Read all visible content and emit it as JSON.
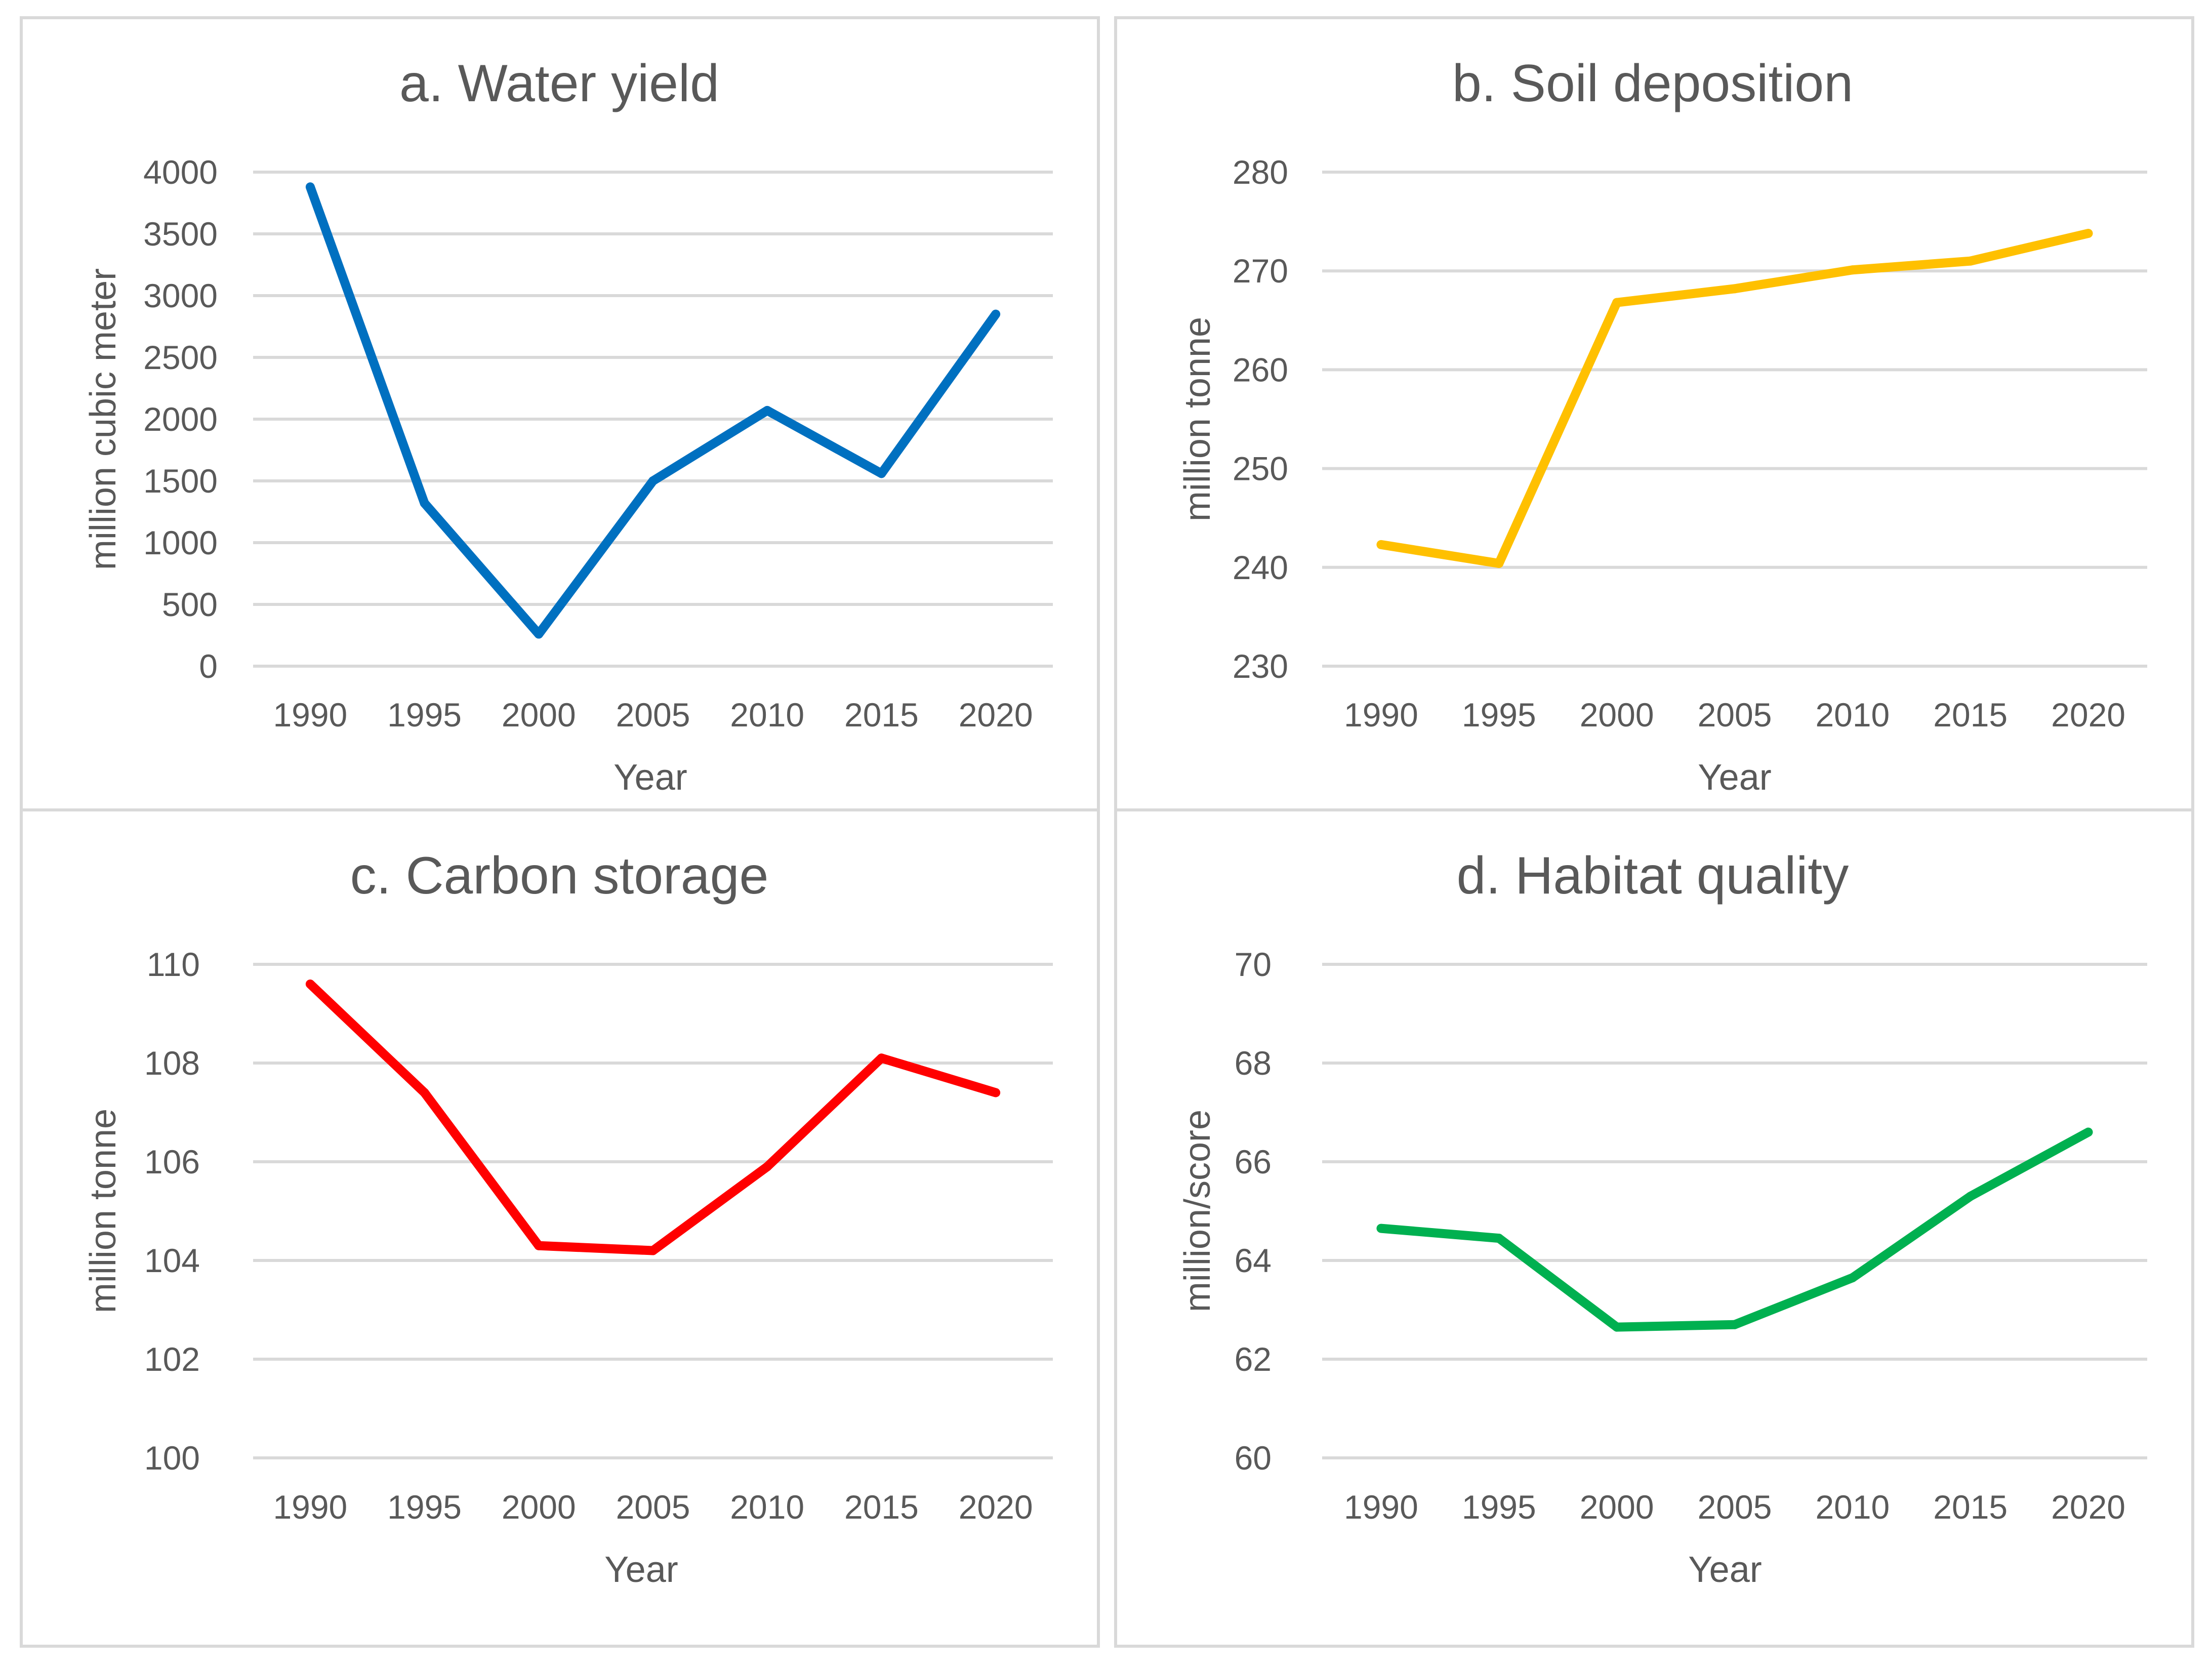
{
  "chart_data": [
    {
      "type": "line",
      "title": "a. Water yield",
      "xlabel": "Year",
      "ylabel": "million cubic meter",
      "categories": [
        "1990",
        "1995",
        "2000",
        "2005",
        "2010",
        "2015",
        "2020"
      ],
      "yticks": [
        "0",
        "500",
        "1000",
        "1500",
        "2000",
        "2500",
        "3000",
        "3500",
        "4000"
      ],
      "ylim": [
        0,
        4000
      ],
      "grid": true,
      "legend": "none",
      "series": [
        {
          "name": "Water yield",
          "color": "#0070c0",
          "values": [
            3880,
            1320,
            260,
            1500,
            2070,
            1560,
            2850
          ]
        }
      ]
    },
    {
      "type": "line",
      "title": "b. Soil deposition",
      "xlabel": "Year",
      "ylabel": "million tonne",
      "categories": [
        "1990",
        "1995",
        "2000",
        "2005",
        "2010",
        "2015",
        "2020"
      ],
      "yticks": [
        "230",
        "240",
        "250",
        "260",
        "270",
        "280"
      ],
      "ylim": [
        230,
        280
      ],
      "grid": true,
      "legend": "none",
      "series": [
        {
          "name": "Soil deposition",
          "color": "#ffc000",
          "values": [
            242.3,
            240.4,
            266.8,
            268.2,
            270.1,
            271.0,
            273.8
          ]
        }
      ]
    },
    {
      "type": "line",
      "title": "c. Carbon storage",
      "xlabel": "Year",
      "ylabel": "million tonne",
      "categories": [
        "1990",
        "1995",
        "2000",
        "2005",
        "2010",
        "2015",
        "2020"
      ],
      "yticks": [
        "100",
        "102",
        "104",
        "106",
        "108",
        "110"
      ],
      "ylim": [
        100,
        110
      ],
      "grid": true,
      "legend": "none",
      "series": [
        {
          "name": "Carbon storage",
          "color": "#ff0000",
          "values": [
            109.6,
            107.4,
            104.3,
            104.2,
            105.9,
            108.1,
            107.4
          ]
        }
      ]
    },
    {
      "type": "line",
      "title": "d. Habitat quality",
      "xlabel": "Year",
      "ylabel": "million/score",
      "categories": [
        "1990",
        "1995",
        "2000",
        "2005",
        "2010",
        "2015",
        "2020"
      ],
      "yticks": [
        "60",
        "62",
        "64",
        "66",
        "68",
        "70"
      ],
      "ylim": [
        60,
        70
      ],
      "grid": true,
      "legend": "none",
      "series": [
        {
          "name": "Habitat quality",
          "color": "#00b050",
          "values": [
            64.65,
            64.45,
            62.65,
            62.7,
            63.65,
            65.3,
            66.6
          ]
        }
      ]
    }
  ]
}
